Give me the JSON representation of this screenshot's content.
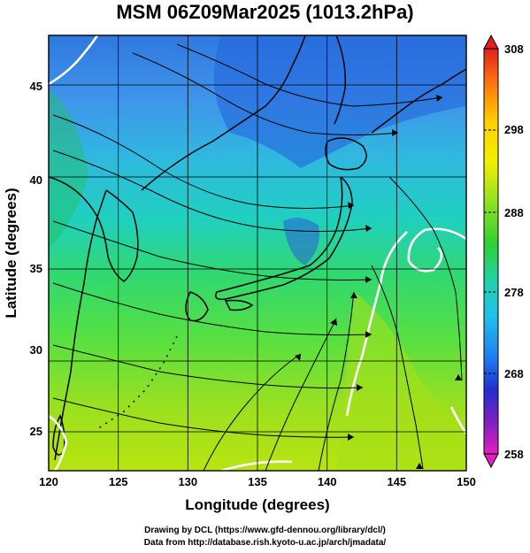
{
  "title": "MSM 06Z09Mar2025 (1013.2hPa)",
  "x_axis": {
    "label": "Longitude (degrees)",
    "ticks": [
      "120",
      "125",
      "130",
      "135",
      "140",
      "145",
      "150"
    ]
  },
  "y_axis": {
    "label": "Latitude  (degrees)",
    "ticks": [
      "25",
      "30",
      "35",
      "40",
      "45"
    ]
  },
  "colorbar": {
    "ticks": [
      "308",
      "298",
      "288",
      "278",
      "268",
      "258"
    ]
  },
  "credits": {
    "line1": "Drawing by DCL (https://www.gfd-dennou.org/library/dcl/)",
    "line2": "Data from http://database.rish.kyoto-u.ac.jp/arch/jmadata/"
  },
  "chart_data": {
    "type": "heatmap",
    "variable": "temperature with streamlines",
    "lon_range": [
      120,
      150
    ],
    "lat_range": [
      22.4,
      47.6
    ],
    "color_range": [
      258,
      308
    ],
    "gridlines": true,
    "colors": {
      "cold_blue": "#2060e0",
      "cyan": "#20c8e0",
      "green": "#30d030",
      "yellow_green": "#b0e000",
      "contour": "#ffffff",
      "coast": "#000000"
    }
  }
}
